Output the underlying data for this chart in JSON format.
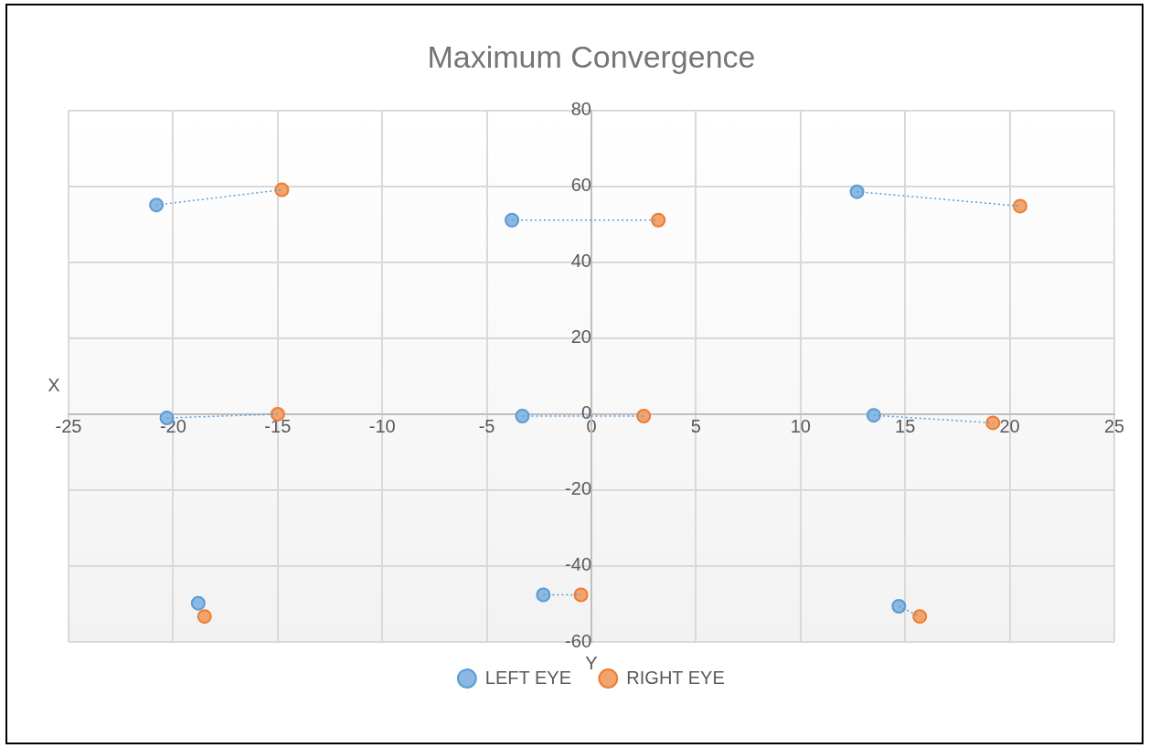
{
  "chart_data": {
    "type": "scatter",
    "title": "Maximum Convergence",
    "xlabel": "Y",
    "ylabel": "X",
    "xlim": [
      -25,
      25
    ],
    "xticks": [
      -25,
      -20,
      -15,
      -10,
      -5,
      0,
      5,
      10,
      15,
      20,
      25
    ],
    "ylim": [
      -60,
      80
    ],
    "yticks": [
      -60,
      -40,
      -20,
      0,
      20,
      40,
      60,
      80
    ],
    "grid": true,
    "legend": "bottom",
    "marker": "circle",
    "series": [
      {
        "type": "line",
        "color": "#5b9bd5",
        "line_style": "dotted",
        "marker": "none",
        "x": [
          -20.8,
          -14.8
        ],
        "values": [
          55.1,
          59.1
        ]
      },
      {
        "type": "line",
        "color": "#5b9bd5",
        "line_style": "dotted",
        "marker": "none",
        "x": [
          -3.8,
          3.2
        ],
        "values": [
          51.1,
          51.1
        ]
      },
      {
        "type": "line",
        "color": "#5b9bd5",
        "line_style": "dotted",
        "marker": "none",
        "x": [
          12.7,
          20.5
        ],
        "values": [
          58.6,
          54.8
        ]
      },
      {
        "type": "line",
        "color": "#5b9bd5",
        "line_style": "dotted",
        "marker": "none",
        "x": [
          -20.3,
          -15
        ],
        "values": [
          -1,
          0
        ]
      },
      {
        "type": "line",
        "color": "#5b9bd5",
        "line_style": "dotted",
        "marker": "none",
        "x": [
          -3.3,
          2.5
        ],
        "values": [
          -0.5,
          -0.5
        ]
      },
      {
        "type": "line",
        "color": "#5b9bd5",
        "line_style": "dotted",
        "marker": "none",
        "x": [
          13.5,
          19.2
        ],
        "values": [
          -0.3,
          -2.3
        ]
      },
      {
        "type": "line",
        "color": "#5b9bd5",
        "line_style": "dotted",
        "marker": "none",
        "x": [
          -2.3,
          -0.5
        ],
        "values": [
          -47.6,
          -47.6
        ]
      },
      {
        "type": "line",
        "color": "#5b9bd5",
        "line_style": "dotted",
        "marker": "none",
        "x": [
          14.7,
          15.7
        ],
        "values": [
          -50.6,
          -53.3
        ]
      },
      {
        "name": "LEFT EYE",
        "color": "#5b9bd5",
        "x": [
          -20.8,
          -3.8,
          12.7,
          -20.3,
          -3.3,
          13.5,
          -18.8,
          -2.3,
          14.7
        ],
        "values": [
          55.1,
          51.1,
          58.6,
          -1,
          -0.5,
          -0.3,
          -49.8,
          -47.6,
          -50.6
        ]
      },
      {
        "name": "RIGHT EYE",
        "color": "#ed7d31",
        "x": [
          -14.8,
          3.2,
          20.5,
          -15,
          2.5,
          19.2,
          -18.5,
          -0.5,
          15.7
        ],
        "values": [
          59.1,
          51.1,
          54.8,
          0,
          -0.5,
          -2.3,
          -53.3,
          -47.6,
          -53.3
        ]
      }
    ]
  }
}
